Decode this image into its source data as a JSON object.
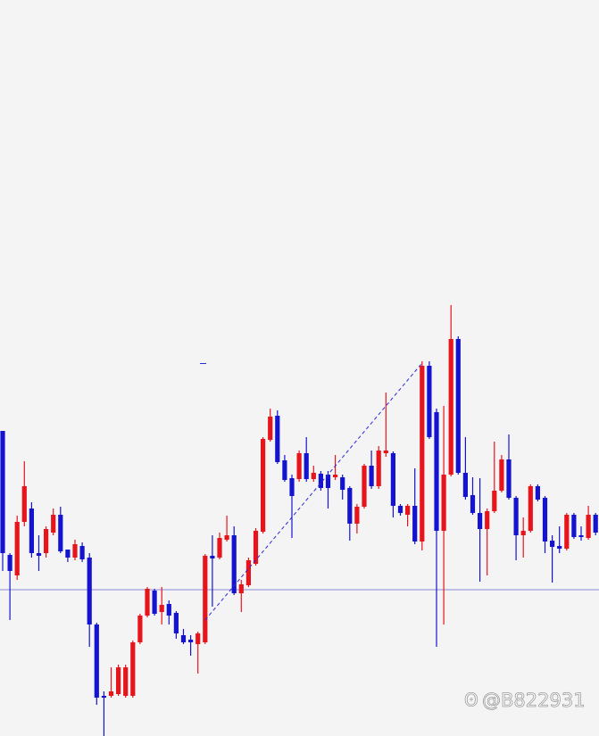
{
  "chart_data": {
    "type": "candlestick",
    "watermark": "@B822931",
    "ylim": [
      0,
      825
    ],
    "up_color": "#e8141c",
    "down_color": "#1414d0",
    "open": [
      342,
      203,
      180,
      240,
      255,
      205,
      205,
      228,
      248,
      209,
      200,
      213,
      200,
      125,
      45,
      45,
      47,
      45,
      45,
      105,
      135,
      163,
      139,
      148,
      138,
      113,
      108,
      103,
      105,
      202,
      200,
      220,
      225,
      160,
      169,
      193,
      229,
      332,
      359,
      309,
      289,
      288,
      317,
      288,
      294,
      293,
      290,
      290,
      278,
      238,
      257,
      303,
      280,
      317,
      317,
      258,
      248,
      258,
      218,
      415,
      363,
      230,
      293,
      445,
      295,
      270,
      250,
      232,
      252,
      275,
      310,
      267,
      225,
      230,
      280,
      267,
      219,
      213,
      210,
      248,
      225,
      222,
      248,
      230
    ],
    "high": [
      342,
      205,
      247,
      308,
      262,
      225,
      235,
      255,
      257,
      209,
      220,
      217,
      205,
      127,
      50,
      77,
      80,
      80,
      107,
      137,
      167,
      165,
      167,
      152,
      140,
      120,
      113,
      117,
      204,
      225,
      228,
      247,
      235,
      175,
      200,
      233,
      335,
      367,
      365,
      315,
      293,
      320,
      335,
      303,
      297,
      297,
      315,
      293,
      280,
      260,
      305,
      320,
      325,
      385,
      319,
      260,
      260,
      300,
      420,
      420,
      367,
      370,
      483,
      448,
      335,
      290,
      289,
      255,
      330,
      315,
      338,
      269,
      245,
      282,
      282,
      269,
      225,
      235,
      250,
      250,
      235,
      258,
      250,
      235
    ],
    "low": [
      185,
      130,
      175,
      235,
      200,
      185,
      200,
      225,
      205,
      195,
      197,
      195,
      100,
      35,
      0,
      43,
      45,
      43,
      43,
      103,
      133,
      135,
      125,
      125,
      109,
      103,
      90,
      70,
      103,
      145,
      198,
      218,
      158,
      139,
      167,
      191,
      227,
      330,
      305,
      285,
      222,
      285,
      285,
      285,
      275,
      255,
      287,
      265,
      219,
      227,
      255,
      277,
      277,
      313,
      245,
      247,
      235,
      215,
      208,
      333,
      100,
      125,
      291,
      293,
      265,
      248,
      173,
      180,
      250,
      273,
      265,
      197,
      200,
      228,
      263,
      205,
      172,
      205,
      208,
      221,
      219,
      220,
      225,
      220
    ],
    "close": [
      205,
      185,
      240,
      280,
      205,
      202,
      232,
      248,
      207,
      200,
      215,
      198,
      125,
      43,
      43,
      50,
      77,
      77,
      105,
      135,
      165,
      137,
      147,
      135,
      115,
      105,
      105,
      115,
      202,
      199,
      222,
      225,
      160,
      170,
      197,
      230,
      333,
      358,
      307,
      287,
      269,
      317,
      288,
      295,
      278,
      278,
      293,
      276,
      238,
      257,
      303,
      280,
      320,
      320,
      258,
      250,
      258,
      218,
      415,
      335,
      230,
      293,
      445,
      295,
      268,
      250,
      232,
      252,
      275,
      310,
      267,
      225,
      230,
      280,
      265,
      218,
      212,
      210,
      248,
      223,
      223,
      248,
      228,
      225
    ],
    "hline": {
      "value": 164,
      "color": "#8a8ad6"
    },
    "trendline": {
      "start_index": 28,
      "start_value": 130,
      "end_index": 58,
      "end_value": 418,
      "color": "#2a2ad8"
    }
  }
}
